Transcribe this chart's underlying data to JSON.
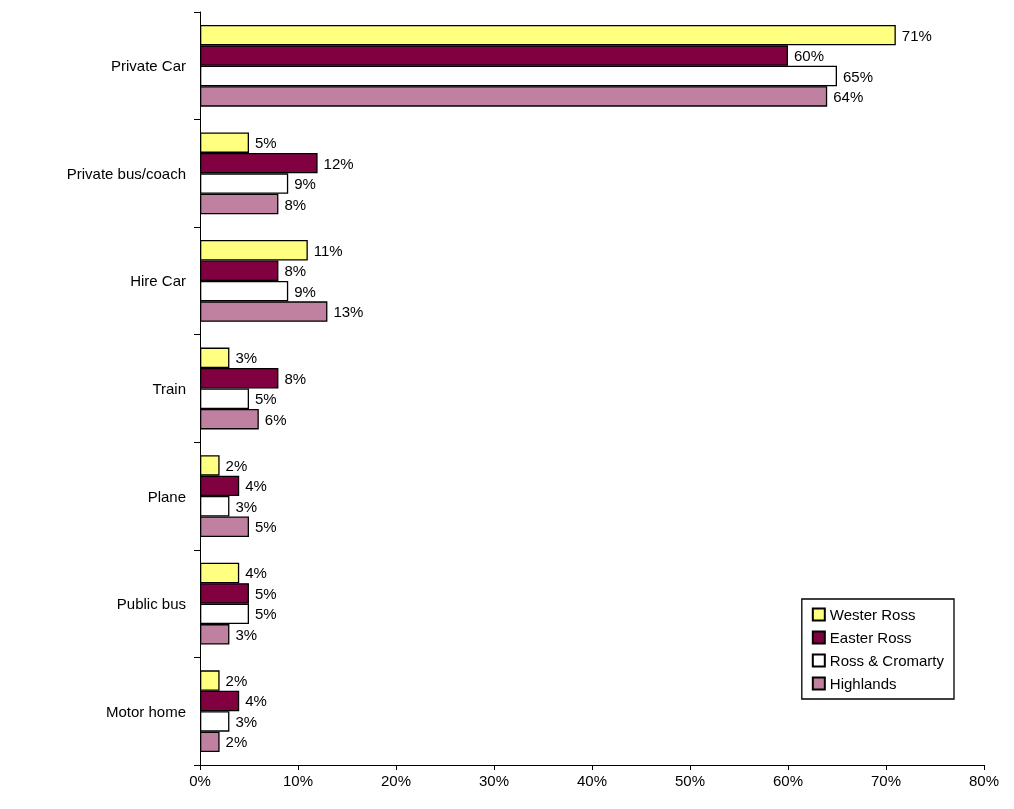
{
  "chart_data": {
    "type": "bar",
    "orientation": "horizontal",
    "categories": [
      "Private Car",
      "Private bus/coach",
      "Hire Car",
      "Train",
      "Plane",
      "Public bus",
      "Motor home"
    ],
    "series": [
      {
        "name": "Wester Ross",
        "color": "#ffff80",
        "values": [
          71,
          5,
          11,
          3,
          2,
          4,
          2
        ],
        "value_labels": [
          "71%",
          "5%",
          "11%",
          "3%",
          "2%",
          "4%",
          "2%"
        ]
      },
      {
        "name": "Easter Ross",
        "color": "#800040",
        "values": [
          60,
          12,
          8,
          8,
          4,
          5,
          4
        ],
        "value_labels": [
          "60%",
          "12%",
          "8%",
          "8%",
          "4%",
          "5%",
          "4%"
        ]
      },
      {
        "name": "Ross & Cromarty",
        "color": "#ffffff",
        "values": [
          65,
          9,
          9,
          5,
          3,
          5,
          3
        ],
        "value_labels": [
          "65%",
          "9%",
          "9%",
          "5%",
          "3%",
          "5%",
          "3%"
        ]
      },
      {
        "name": "Highlands",
        "color": "#c080a0",
        "values": [
          64,
          8,
          13,
          6,
          5,
          3,
          2
        ],
        "value_labels": [
          "64%",
          "8%",
          "13%",
          "6%",
          "5%",
          "3%",
          "2%"
        ]
      }
    ],
    "xlim": [
      0,
      80
    ],
    "xticks": [
      {
        "value": 0,
        "label": "0%"
      },
      {
        "value": 10,
        "label": "10%"
      },
      {
        "value": 20,
        "label": "20%"
      },
      {
        "value": 30,
        "label": "30%"
      },
      {
        "value": 40,
        "label": "40%"
      },
      {
        "value": 50,
        "label": "50%"
      },
      {
        "value": 60,
        "label": "60%"
      },
      {
        "value": 70,
        "label": "70%"
      },
      {
        "value": 80,
        "label": "80%"
      }
    ],
    "grid": false,
    "legend": "bottom right"
  }
}
